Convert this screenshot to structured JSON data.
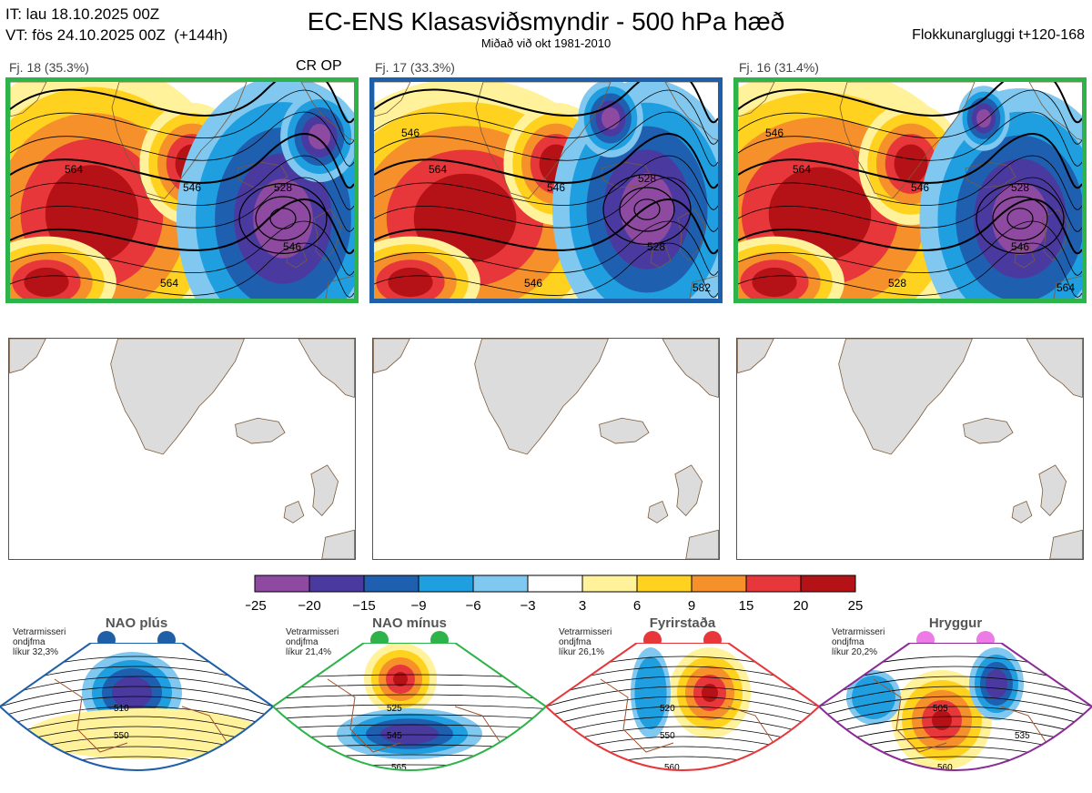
{
  "header": {
    "init_time": "IT: lau 18.10.2025 00Z",
    "valid_time": "VT: fös 24.10.2025 00Z  (+144h)",
    "title": "EC-ENS Klasasviðsmyndir - 500 hPa hæð",
    "subtitle": "Miðað við okt 1981-2010",
    "window": "Flokkunargluggi t+120-168"
  },
  "clusters": [
    {
      "label": "Fj. 18 (35.3%)",
      "members": 18,
      "percent": 35.3,
      "border_color": "#2db34a",
      "op_label": "CR OP",
      "contours": [
        "564",
        "546",
        "528",
        "546",
        "564"
      ]
    },
    {
      "label": "Fj. 17 (33.3%)",
      "members": 17,
      "percent": 33.3,
      "border_color": "#1f5fa8",
      "op_label": "",
      "contours": [
        "564",
        "546",
        "528",
        "528",
        "546",
        "546",
        "582"
      ]
    },
    {
      "label": "Fj. 16 (31.4%)",
      "members": 16,
      "percent": 31.4,
      "border_color": "#2db34a",
      "op_label": "",
      "contours": [
        "564",
        "546",
        "528",
        "546",
        "528",
        "546",
        "564"
      ]
    }
  ],
  "colorbar": {
    "colors": [
      "#8e4aa0",
      "#4a3aa0",
      "#1f5fb0",
      "#1f9fe0",
      "#80c8f0",
      "#ffffff",
      "#fff29a",
      "#ffd21f",
      "#f5902a",
      "#e8373a",
      "#b51218"
    ],
    "tick_labels": [
      "−25",
      "−20",
      "−15",
      "−9",
      "−6",
      "−3",
      "3",
      "6",
      "9",
      "15",
      "20",
      "25"
    ]
  },
  "regimes": [
    {
      "name": "NAO plús",
      "note_line1": "Vetrarmisseri",
      "note_line2": "ondjfma",
      "note_line3": "líkur 32,3%",
      "dot_color": "#1f5fa8",
      "frame_color": "#1f5fa8",
      "labels": [
        "510",
        "550"
      ]
    },
    {
      "name": "NAO mínus",
      "note_line1": "Vetrarmisseri",
      "note_line2": "ondjfma",
      "note_line3": "líkur 21,4%",
      "dot_color": "#2db34a",
      "frame_color": "#2db34a",
      "labels": [
        "525",
        "545",
        "565"
      ]
    },
    {
      "name": "Fyrirstaða",
      "note_line1": "Vetrarmisseri",
      "note_line2": "ondjfma",
      "note_line3": "líkur 26,1%",
      "dot_color": "#e8373a",
      "frame_color": "#e8373a",
      "labels": [
        "520",
        "550",
        "560"
      ]
    },
    {
      "name": "Hryggur",
      "note_line1": "Vetrarmisseri",
      "note_line2": "ondjfma",
      "note_line3": "líkur 20,2%",
      "dot_color": "#ee7ae8",
      "frame_color": "#8a2b96",
      "labels": [
        "505",
        "535",
        "560"
      ]
    }
  ]
}
